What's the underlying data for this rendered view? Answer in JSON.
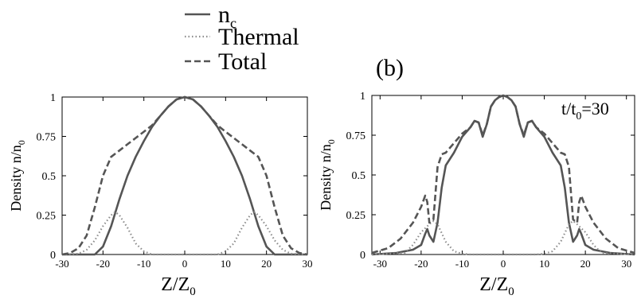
{
  "legend": {
    "entries": [
      {
        "name": "n",
        "subscript": "c",
        "style": "solid",
        "color": "#555555"
      },
      {
        "name": "Thermal",
        "subscript": "",
        "style": "dotted",
        "color": "#8c8c8c"
      },
      {
        "name": "Total",
        "subscript": "",
        "style": "dashed",
        "color": "#555555"
      }
    ]
  },
  "panel_b_label": "(b)",
  "chart_data": [
    {
      "type": "line",
      "title": "",
      "annotation": "",
      "xlabel": {
        "main": "Z/Z",
        "sub": "0"
      },
      "ylabel": {
        "main": "Density n/n",
        "sub": "0"
      },
      "xlim": [
        -30,
        30
      ],
      "ylim": [
        0,
        1
      ],
      "xticks": [
        "-30",
        "-20",
        "-10",
        "0",
        "10",
        "20",
        "30"
      ],
      "yticks": [
        "0",
        "0.25",
        "0.5",
        "0.75",
        "1"
      ],
      "series": [
        {
          "name": "n_c",
          "style": "solid",
          "points": [
            [
              -30,
              0
            ],
            [
              -22,
              0
            ],
            [
              -20,
              0.05
            ],
            [
              -18,
              0.18
            ],
            [
              -16,
              0.35
            ],
            [
              -14,
              0.5
            ],
            [
              -12,
              0.62
            ],
            [
              -10,
              0.72
            ],
            [
              -8,
              0.81
            ],
            [
              -6,
              0.88
            ],
            [
              -4,
              0.94
            ],
            [
              -2,
              0.985
            ],
            [
              0,
              1
            ],
            [
              2,
              0.985
            ],
            [
              4,
              0.94
            ],
            [
              6,
              0.88
            ],
            [
              8,
              0.81
            ],
            [
              10,
              0.72
            ],
            [
              12,
              0.62
            ],
            [
              14,
              0.5
            ],
            [
              16,
              0.35
            ],
            [
              18,
              0.18
            ],
            [
              20,
              0.05
            ],
            [
              22,
              0
            ],
            [
              30,
              0
            ]
          ]
        },
        {
          "name": "Thermal",
          "style": "dotted",
          "points": [
            [
              -30,
              0
            ],
            [
              -26,
              0.005
            ],
            [
              -24,
              0.03
            ],
            [
              -22,
              0.09
            ],
            [
              -20,
              0.18
            ],
            [
              -18,
              0.25
            ],
            [
              -17,
              0.27
            ],
            [
              -16,
              0.25
            ],
            [
              -14,
              0.17
            ],
            [
              -12,
              0.07
            ],
            [
              -10,
              0.02
            ],
            [
              -8,
              0
            ],
            [
              8,
              0
            ],
            [
              10,
              0.02
            ],
            [
              12,
              0.07
            ],
            [
              14,
              0.17
            ],
            [
              16,
              0.25
            ],
            [
              17,
              0.27
            ],
            [
              18,
              0.25
            ],
            [
              20,
              0.18
            ],
            [
              22,
              0.09
            ],
            [
              24,
              0.03
            ],
            [
              26,
              0.005
            ],
            [
              30,
              0
            ]
          ]
        },
        {
          "name": "Total",
          "style": "dashed",
          "points": [
            [
              -30,
              0
            ],
            [
              -28,
              0.01
            ],
            [
              -26,
              0.04
            ],
            [
              -24,
              0.12
            ],
            [
              -22,
              0.3
            ],
            [
              -20,
              0.5
            ],
            [
              -18,
              0.62
            ],
            [
              -16,
              0.66
            ],
            [
              -14,
              0.7
            ],
            [
              -12,
              0.74
            ],
            [
              -10,
              0.78
            ],
            [
              -8,
              0.82
            ],
            [
              -6,
              0.88
            ],
            [
              -4,
              0.94
            ],
            [
              -2,
              0.985
            ],
            [
              0,
              1
            ],
            [
              2,
              0.985
            ],
            [
              4,
              0.94
            ],
            [
              6,
              0.88
            ],
            [
              8,
              0.82
            ],
            [
              10,
              0.78
            ],
            [
              12,
              0.74
            ],
            [
              14,
              0.7
            ],
            [
              16,
              0.66
            ],
            [
              18,
              0.62
            ],
            [
              20,
              0.5
            ],
            [
              22,
              0.3
            ],
            [
              24,
              0.12
            ],
            [
              26,
              0.04
            ],
            [
              28,
              0.01
            ],
            [
              30,
              0
            ]
          ]
        }
      ]
    },
    {
      "type": "line",
      "title": "",
      "annotation": {
        "main": "t/t",
        "sub": "0",
        "suffix": "=30"
      },
      "xlabel": {
        "main": "Z/Z",
        "sub": "0"
      },
      "ylabel": {
        "main": "Density n/n",
        "sub": "0"
      },
      "xlim": [
        -32,
        32
      ],
      "ylim": [
        0,
        1
      ],
      "xticks": [
        "-30",
        "-20",
        "-10",
        "0",
        "10",
        "20",
        "30"
      ],
      "yticks": [
        "0",
        "0.25",
        "0.5",
        "0.75",
        "1"
      ],
      "series": [
        {
          "name": "n_c",
          "style": "solid",
          "points": [
            [
              -32,
              0
            ],
            [
              -26,
              0.01
            ],
            [
              -22,
              0.03
            ],
            [
              -20,
              0.06
            ],
            [
              -19,
              0.13
            ],
            [
              -18.5,
              0.16
            ],
            [
              -18,
              0.12
            ],
            [
              -17,
              0.08
            ],
            [
              -16,
              0.2
            ],
            [
              -15,
              0.42
            ],
            [
              -14,
              0.56
            ],
            [
              -12,
              0.64
            ],
            [
              -10,
              0.74
            ],
            [
              -8,
              0.8
            ],
            [
              -7,
              0.84
            ],
            [
              -6,
              0.83
            ],
            [
              -5,
              0.74
            ],
            [
              -4,
              0.82
            ],
            [
              -3,
              0.93
            ],
            [
              -2,
              0.97
            ],
            [
              -1,
              0.99
            ],
            [
              0,
              1
            ],
            [
              1,
              0.99
            ],
            [
              2,
              0.97
            ],
            [
              3,
              0.93
            ],
            [
              4,
              0.82
            ],
            [
              5,
              0.74
            ],
            [
              6,
              0.83
            ],
            [
              7,
              0.84
            ],
            [
              8,
              0.8
            ],
            [
              10,
              0.74
            ],
            [
              12,
              0.64
            ],
            [
              14,
              0.56
            ],
            [
              15,
              0.42
            ],
            [
              16,
              0.2
            ],
            [
              17,
              0.08
            ],
            [
              18,
              0.12
            ],
            [
              18.5,
              0.16
            ],
            [
              19,
              0.13
            ],
            [
              20,
              0.06
            ],
            [
              22,
              0.03
            ],
            [
              26,
              0.01
            ],
            [
              32,
              0
            ]
          ]
        },
        {
          "name": "Thermal",
          "style": "dotted",
          "points": [
            [
              -32,
              0
            ],
            [
              -24,
              0.01
            ],
            [
              -22,
              0.06
            ],
            [
              -20,
              0.14
            ],
            [
              -18,
              0.19
            ],
            [
              -17,
              0.21
            ],
            [
              -16,
              0.19
            ],
            [
              -14,
              0.08
            ],
            [
              -12,
              0.02
            ],
            [
              -10,
              0.005
            ],
            [
              -8,
              0
            ],
            [
              8,
              0
            ],
            [
              10,
              0.005
            ],
            [
              12,
              0.02
            ],
            [
              14,
              0.08
            ],
            [
              16,
              0.19
            ],
            [
              17,
              0.21
            ],
            [
              18,
              0.19
            ],
            [
              20,
              0.14
            ],
            [
              22,
              0.06
            ],
            [
              24,
              0.01
            ],
            [
              32,
              0
            ]
          ]
        },
        {
          "name": "Total",
          "style": "dashed",
          "points": [
            [
              -32,
              0.01
            ],
            [
              -28,
              0.04
            ],
            [
              -25,
              0.1
            ],
            [
              -22,
              0.2
            ],
            [
              -20,
              0.3
            ],
            [
              -19,
              0.37
            ],
            [
              -18.5,
              0.33
            ],
            [
              -18,
              0.2
            ],
            [
              -17,
              0.22
            ],
            [
              -16,
              0.55
            ],
            [
              -15,
              0.63
            ],
            [
              -14,
              0.64
            ],
            [
              -12,
              0.7
            ],
            [
              -10,
              0.76
            ],
            [
              -8,
              0.8
            ],
            [
              -7,
              0.84
            ],
            [
              -6,
              0.83
            ],
            [
              -5,
              0.75
            ],
            [
              -4,
              0.82
            ],
            [
              -3,
              0.93
            ],
            [
              -2,
              0.97
            ],
            [
              -1,
              0.99
            ],
            [
              0,
              1
            ],
            [
              1,
              0.99
            ],
            [
              2,
              0.97
            ],
            [
              3,
              0.93
            ],
            [
              4,
              0.82
            ],
            [
              5,
              0.75
            ],
            [
              6,
              0.83
            ],
            [
              7,
              0.84
            ],
            [
              8,
              0.8
            ],
            [
              10,
              0.76
            ],
            [
              12,
              0.7
            ],
            [
              14,
              0.64
            ],
            [
              15,
              0.63
            ],
            [
              16,
              0.55
            ],
            [
              17,
              0.22
            ],
            [
              18,
              0.2
            ],
            [
              18.5,
              0.33
            ],
            [
              19,
              0.37
            ],
            [
              20,
              0.3
            ],
            [
              22,
              0.2
            ],
            [
              25,
              0.1
            ],
            [
              28,
              0.04
            ],
            [
              32,
              0.01
            ]
          ]
        }
      ]
    }
  ]
}
